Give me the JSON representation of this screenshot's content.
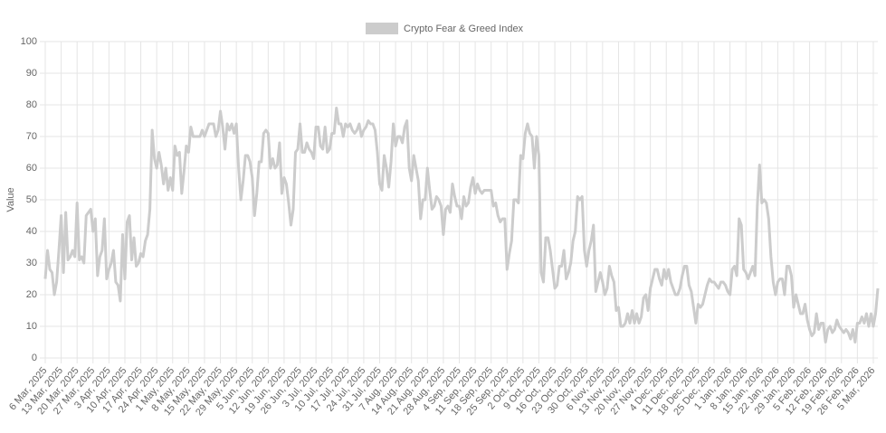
{
  "chart_data": {
    "type": "line",
    "ylabel": "Value",
    "legend": "top",
    "grid": true,
    "ylim": [
      0,
      100
    ],
    "yticks": [
      0,
      10,
      20,
      30,
      40,
      50,
      60,
      70,
      80,
      90,
      100
    ],
    "categories": [
      "6 Mar, 2025",
      null,
      null,
      null,
      null,
      null,
      null,
      "13 Mar, 2025",
      null,
      null,
      null,
      null,
      null,
      null,
      "20 Mar, 2025",
      null,
      null,
      null,
      null,
      null,
      null,
      "27 Mar, 2025",
      null,
      null,
      null,
      null,
      null,
      null,
      "3 Apr, 2025",
      null,
      null,
      null,
      null,
      null,
      null,
      "10 Apr, 2025",
      null,
      null,
      null,
      null,
      null,
      null,
      "17 Apr, 2025",
      null,
      null,
      null,
      null,
      null,
      null,
      "24 Apr, 2025",
      null,
      null,
      null,
      null,
      null,
      null,
      "1 May, 2025",
      null,
      null,
      null,
      null,
      null,
      null,
      "8 May, 2025",
      null,
      null,
      null,
      null,
      null,
      null,
      "15 May, 2025",
      null,
      null,
      null,
      null,
      null,
      null,
      "22 May, 2025",
      null,
      null,
      null,
      null,
      null,
      null,
      "29 May, 2025",
      null,
      null,
      null,
      null,
      null,
      null,
      "5 Jun, 2025",
      null,
      null,
      null,
      null,
      null,
      null,
      "12 Jun, 2025",
      null,
      null,
      null,
      null,
      null,
      null,
      "19 Jun, 2025",
      null,
      null,
      null,
      null,
      null,
      null,
      "26 Jun, 2025",
      null,
      null,
      null,
      null,
      null,
      null,
      "3 Jul, 2025",
      null,
      null,
      null,
      null,
      null,
      null,
      "10 Jul, 2025",
      null,
      null,
      null,
      null,
      null,
      null,
      "17 Jul, 2025",
      null,
      null,
      null,
      null,
      null,
      null,
      "24 Jul, 2025",
      null,
      null,
      null,
      null,
      null,
      null,
      "31 Jul, 2025",
      null,
      null,
      null,
      null,
      null,
      null,
      "7 Aug, 2025",
      null,
      null,
      null,
      null,
      null,
      null,
      "14 Aug, 2025",
      null,
      null,
      null,
      null,
      null,
      null,
      "21 Aug, 2025",
      null,
      null,
      null,
      null,
      null,
      null,
      "28 Aug, 2025",
      null,
      null,
      null,
      null,
      null,
      null,
      "4 Sep, 2025",
      null,
      null,
      null,
      null,
      null,
      null,
      "11 Sep, 2025",
      null,
      null,
      null,
      null,
      null,
      null,
      "18 Sep, 2025",
      null,
      null,
      null,
      null,
      null,
      null,
      "25 Sep, 2025",
      null,
      null,
      null,
      null,
      null,
      null,
      "2 Oct, 2025",
      null,
      null,
      null,
      null,
      null,
      null,
      "9 Oct, 2025",
      null,
      null,
      null,
      null,
      null,
      null,
      "16 Oct, 2025",
      null,
      null,
      null,
      null,
      null,
      null,
      "23 Oct, 2025",
      null,
      null,
      null,
      null,
      null,
      null,
      "30 Oct, 2025",
      null,
      null,
      null,
      null,
      null,
      null,
      "6 Nov, 2025",
      null,
      null,
      null,
      null,
      null,
      null,
      "13 Nov, 2025",
      null,
      null,
      null,
      null,
      null,
      null,
      "20 Nov, 2025",
      null,
      null,
      null,
      null,
      null,
      null,
      "27 Nov, 2025",
      null,
      null,
      null,
      null,
      null,
      null,
      "4 Dec, 2025",
      null,
      null,
      null,
      null,
      null,
      null,
      "11 Dec, 2025",
      null,
      null,
      null,
      null,
      null,
      null,
      "18 Dec, 2025",
      null,
      null,
      null,
      null,
      null,
      null,
      "25 Dec, 2025",
      null,
      null,
      null,
      null,
      null,
      null,
      "1 Jan, 2026",
      null,
      null,
      null,
      null,
      null,
      null,
      "8 Jan, 2026",
      null,
      null,
      null,
      null,
      null,
      null,
      "15 Jan, 2026",
      null,
      null,
      null,
      null,
      null,
      null,
      "22 Jan, 2026",
      null,
      null,
      null,
      null,
      null,
      null,
      "29 Jan, 2026",
      null,
      null,
      null,
      null,
      null,
      null,
      "5 Feb, 2026",
      null,
      null,
      null,
      null,
      null,
      null,
      "12 Feb, 2026",
      null,
      null,
      null,
      null,
      null,
      null,
      "19 Feb, 2026",
      null,
      null,
      null,
      null,
      null,
      null,
      "26 Feb, 2026",
      null,
      null,
      null,
      null,
      null,
      null,
      "5 Mar, 2026",
      null,
      null
    ],
    "series": [
      {
        "name": "Crypto Fear & Greed Index",
        "color": "#cccccc",
        "values": [
          25,
          34,
          28,
          27,
          20,
          24,
          34,
          45,
          27,
          46,
          31,
          32,
          34,
          32,
          49,
          31,
          32,
          30,
          45,
          46,
          47,
          40,
          44,
          26,
          32,
          34,
          44,
          25,
          28,
          30,
          34,
          24,
          23,
          18,
          39,
          25,
          43,
          45,
          31,
          38,
          29,
          30,
          33,
          32,
          37,
          39,
          47,
          72,
          63,
          60,
          65,
          61,
          55,
          60,
          53,
          57,
          53,
          67,
          64,
          65,
          52,
          59,
          67,
          65,
          73,
          70,
          70,
          70,
          70,
          72,
          70,
          72,
          74,
          74,
          74,
          70,
          72,
          78,
          73,
          66,
          74,
          72,
          74,
          71,
          74,
          60,
          50,
          56,
          64,
          64,
          62,
          57,
          45,
          52,
          62,
          62,
          71,
          72,
          71,
          60,
          63,
          60,
          61,
          68,
          52,
          57,
          55,
          49,
          42,
          47,
          65,
          66,
          74,
          65,
          65,
          68,
          66,
          65,
          63,
          73,
          73,
          67,
          66,
          73,
          65,
          66,
          71,
          71,
          79,
          74,
          74,
          70,
          74,
          73,
          74,
          72,
          71,
          72,
          74,
          70,
          72,
          73,
          75,
          74,
          74,
          72,
          65,
          55,
          53,
          64,
          60,
          54,
          62,
          74,
          67,
          70,
          70,
          68,
          73,
          75,
          60,
          56,
          64,
          60,
          56,
          44,
          50,
          50,
          60,
          53,
          47,
          48,
          51,
          50,
          48,
          39,
          47,
          48,
          46,
          55,
          51,
          48,
          48,
          44,
          51,
          48,
          49,
          54,
          57,
          52,
          55,
          53,
          52,
          53,
          53,
          53,
          53,
          48,
          49,
          45,
          43,
          44,
          44,
          28,
          33,
          37,
          50,
          50,
          49,
          64,
          63,
          71,
          74,
          71,
          70,
          60,
          70,
          64,
          27,
          24,
          38,
          38,
          34,
          28,
          22,
          23,
          29,
          29,
          34,
          25,
          27,
          30,
          37,
          40,
          51,
          50,
          51,
          34,
          29,
          34,
          37,
          42,
          21,
          24,
          27,
          24,
          20,
          22,
          29,
          26,
          24,
          15,
          16,
          10,
          10,
          11,
          14,
          11,
          15,
          11,
          14,
          11,
          13,
          19,
          20,
          15,
          22,
          25,
          28,
          28,
          25,
          23,
          28,
          25,
          28,
          24,
          22,
          20,
          20,
          22,
          26,
          29,
          29,
          23,
          21,
          16,
          11,
          17,
          16,
          17,
          20,
          23,
          25,
          24,
          24,
          23,
          22,
          24,
          24,
          23,
          21,
          20,
          28,
          29,
          26,
          44,
          42,
          28,
          27,
          25,
          27,
          29,
          26,
          48,
          61,
          49,
          50,
          49,
          44,
          32,
          24,
          20,
          24,
          25,
          25,
          20,
          29,
          29,
          26,
          16,
          20,
          17,
          14,
          14,
          17,
          12,
          9,
          7,
          8,
          14,
          9,
          11,
          11,
          5,
          9,
          10,
          8,
          9,
          12,
          10,
          9,
          8,
          9,
          8,
          6,
          9,
          5,
          11,
          11,
          13,
          11,
          14,
          10,
          14,
          10,
          14,
          22
        ]
      }
    ]
  }
}
